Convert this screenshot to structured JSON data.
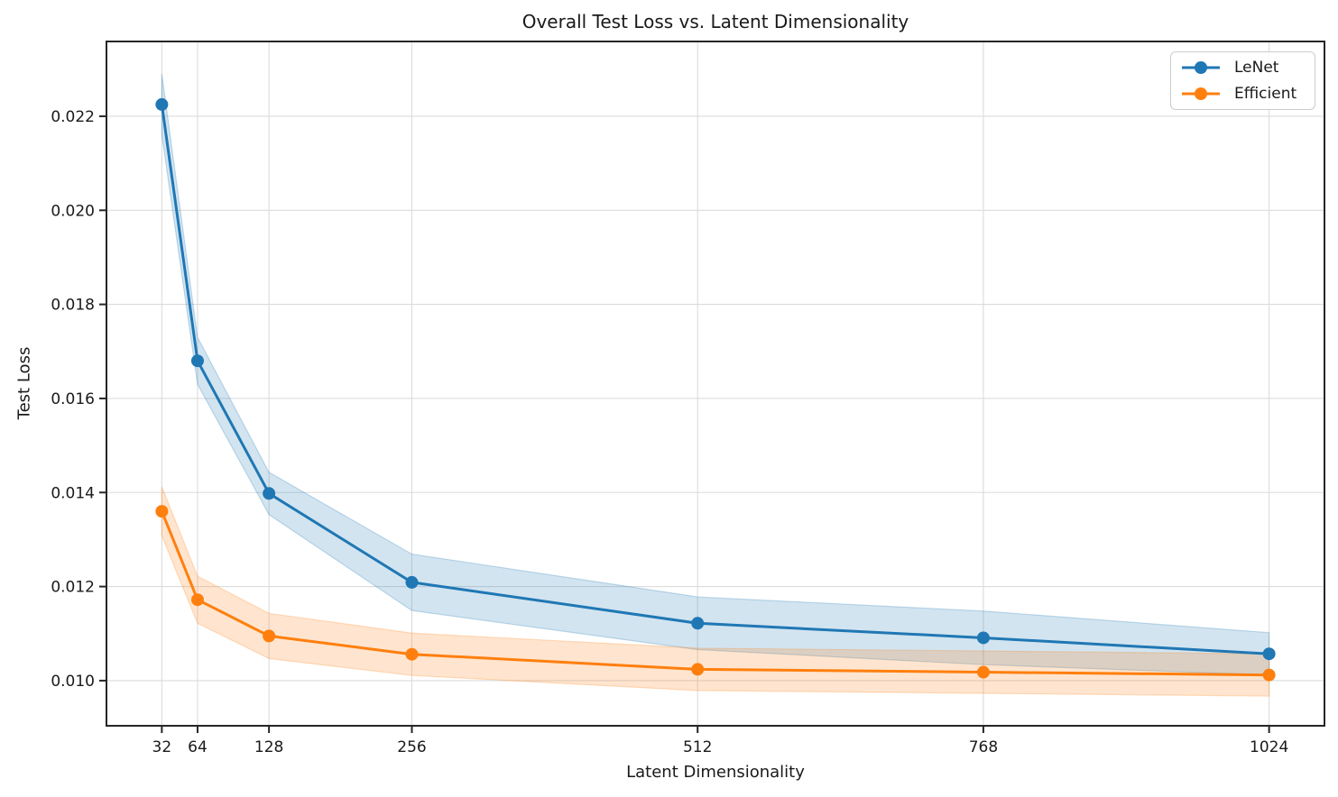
{
  "chart_data": {
    "type": "line",
    "title": "Overall Test Loss vs. Latent Dimensionality",
    "xlabel": "Latent Dimensionality",
    "ylabel": "Test Loss",
    "x": [
      32,
      64,
      128,
      256,
      512,
      768,
      1024
    ],
    "x_tick_labels": [
      "32",
      "64",
      "128",
      "256",
      "512",
      "768",
      "1024"
    ],
    "y_ticks": [
      0.01,
      0.012,
      0.014,
      0.016,
      0.018,
      0.02,
      0.022
    ],
    "y_tick_labels": [
      "0.010",
      "0.012",
      "0.014",
      "0.016",
      "0.018",
      "0.020",
      "0.022"
    ],
    "xlim": [
      -17.6,
      1073.6
    ],
    "ylim": [
      0.00904,
      0.02359
    ],
    "grid": true,
    "legend_position": "upper right",
    "band_alpha": 0.2,
    "series": [
      {
        "name": "LeNet",
        "color": "#1f77b4",
        "values": [
          0.02225,
          0.0168,
          0.01398,
          0.01209,
          0.01122,
          0.01091,
          0.01057
        ],
        "std": [
          0.00065,
          0.0005,
          0.00045,
          0.0006,
          0.00056,
          0.00057,
          0.00045
        ]
      },
      {
        "name": "Efficient",
        "color": "#ff7f0e",
        "values": [
          0.0136,
          0.01172,
          0.01095,
          0.01056,
          0.01024,
          0.01018,
          0.01012
        ],
        "std": [
          0.00052,
          0.0005,
          0.00048,
          0.00045,
          0.00045,
          0.00045,
          0.00045
        ]
      }
    ]
  },
  "colors": {
    "text": "#1a1a1a",
    "grid": "#dcdcdc",
    "spine": "#262626",
    "background": "#ffffff",
    "legend_border": "#cccccc"
  }
}
